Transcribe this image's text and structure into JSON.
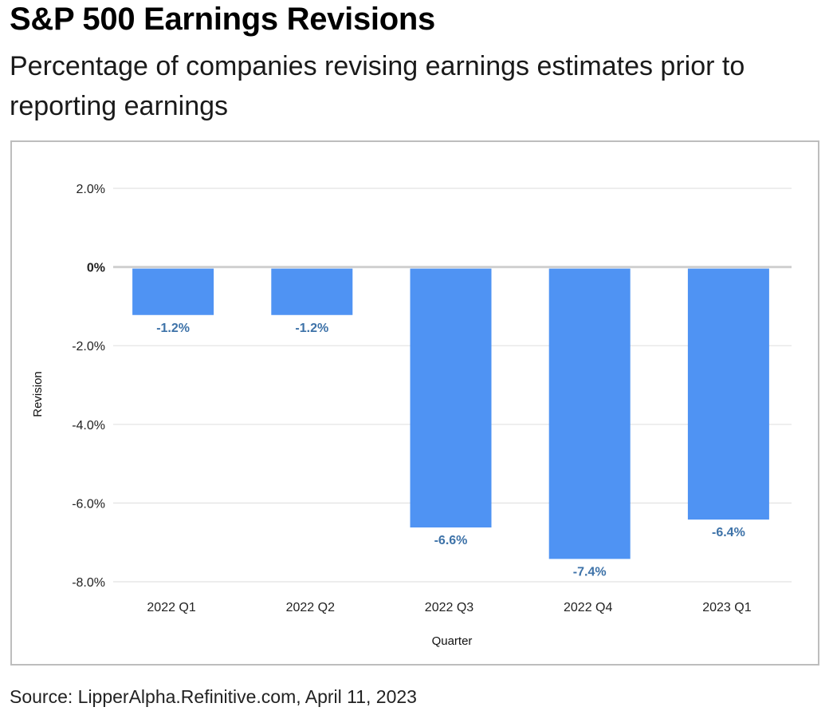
{
  "title": "S&P 500 Earnings Revisions",
  "subtitle": "Percentage of companies revising earnings estimates prior to reporting earnings",
  "source": "Source: LipperAlpha.Refinitive.com, April 11, 2023",
  "chart_data": {
    "type": "bar",
    "categories": [
      "2022 Q1",
      "2022 Q2",
      "2022 Q3",
      "2022 Q4",
      "2023 Q1"
    ],
    "values": [
      -1.2,
      -1.2,
      -6.6,
      -7.4,
      -6.4
    ],
    "data_labels": [
      "-1.2%",
      "-1.2%",
      "-6.6%",
      "-7.4%",
      "-6.4%"
    ],
    "xlabel": "Quarter",
    "ylabel": "Revision",
    "ylim": [
      -8.0,
      2.0
    ],
    "yticks": [
      2.0,
      0,
      -2.0,
      -4.0,
      -6.0,
      -8.0
    ],
    "ytick_labels": [
      "2.0%",
      "0%",
      "-2.0%",
      "-4.0%",
      "-6.0%",
      "-8.0%"
    ],
    "grid": true,
    "legend": "none",
    "colors": {
      "bar": "#4f93f3",
      "data_label": "#3d72a8",
      "gridline": "#e2e2e2",
      "zero_line": "#d0d0d0"
    }
  }
}
